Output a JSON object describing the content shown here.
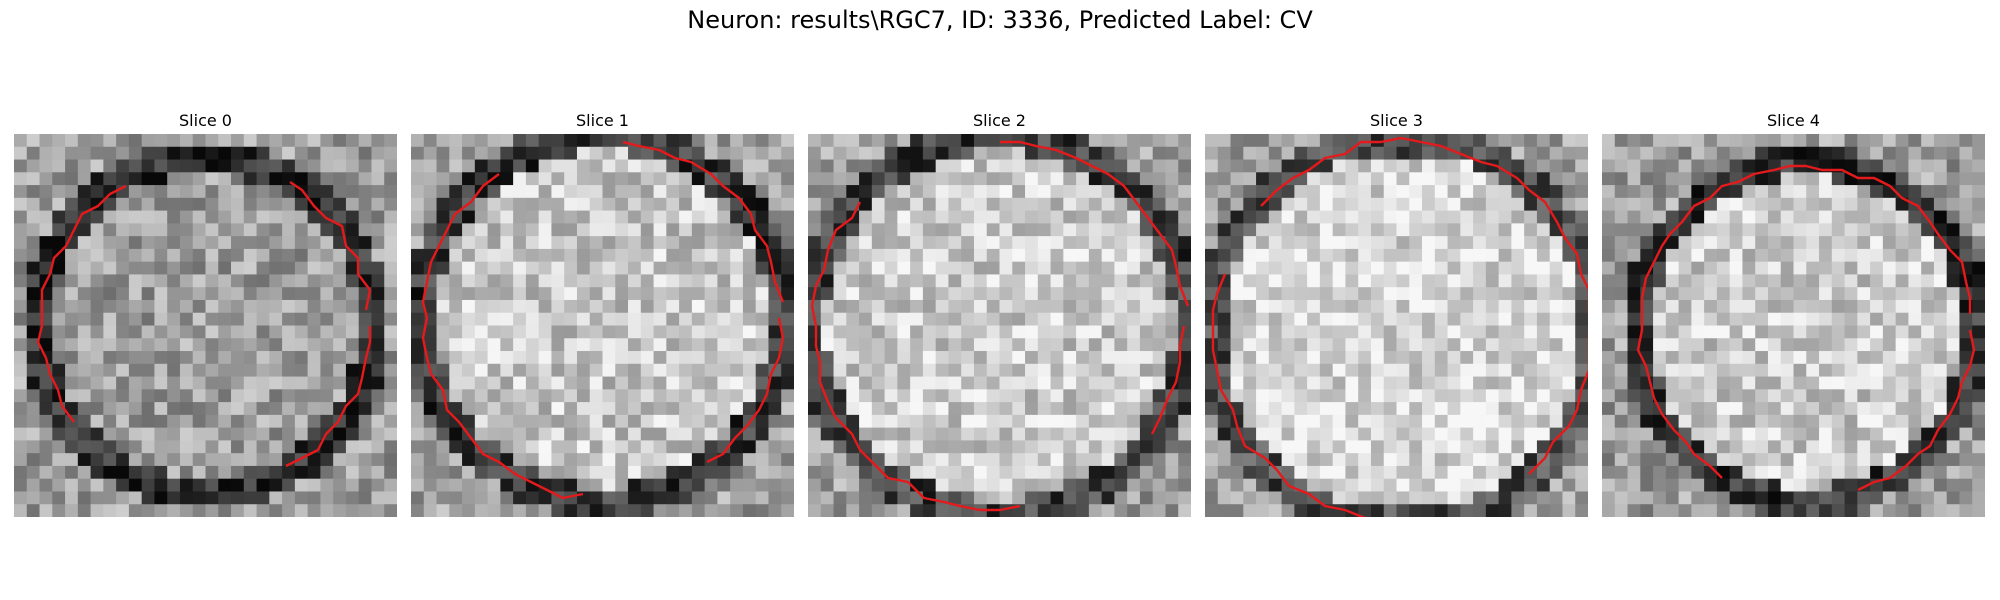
{
  "figure": {
    "title": "Neuron: results\\RGC7, ID: 3336, Predicted Label: CV"
  },
  "panels": [
    {
      "title": "Slice 0",
      "image": "grayscale-cell-slice",
      "contour_color": "#e41a1c"
    },
    {
      "title": "Slice 1",
      "image": "grayscale-cell-slice",
      "contour_color": "#e41a1c"
    },
    {
      "title": "Slice 2",
      "image": "grayscale-cell-slice",
      "contour_color": "#e41a1c"
    },
    {
      "title": "Slice 3",
      "image": "grayscale-cell-slice",
      "contour_color": "#e41a1c"
    },
    {
      "title": "Slice 4",
      "image": "grayscale-cell-slice",
      "contour_color": "#e41a1c"
    }
  ]
}
